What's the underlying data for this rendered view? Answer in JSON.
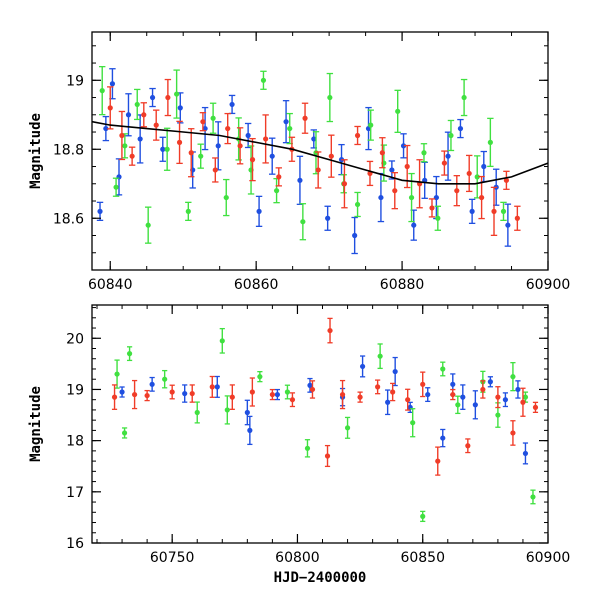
{
  "chart_data": [
    {
      "type": "scatter",
      "title": "",
      "xlabel": "",
      "ylabel": "Magnitude",
      "xlim": [
        60837.5,
        60900
      ],
      "ylim": [
        19.14,
        18.45
      ],
      "y_inverted": true,
      "x_ticks": [
        60840,
        60860,
        60880,
        60900
      ],
      "y_ticks": [
        18.6,
        18.8,
        19
      ],
      "x_tick_labels": [
        "60840",
        "60860",
        "60880",
        "60900"
      ],
      "y_tick_labels": [
        "18.6",
        "18.8",
        "19"
      ],
      "grid": false,
      "legend": "none",
      "series": [
        {
          "color": "#1f4fe0",
          "x": [
            60838.6,
            60839.4,
            60840.3,
            60841.2,
            60842.5,
            60844.1,
            60845.8,
            60847.2,
            60849.6,
            60851.3,
            60853.0,
            60854.8,
            60856.7,
            60858.9,
            60860.4,
            60862.2,
            60864.1,
            60866.0,
            60867.9,
            60869.8,
            60871.7,
            60873.5,
            60875.4,
            60877.1,
            60878.6,
            60880.2,
            60881.6,
            60883.1,
            60884.7,
            60886.3,
            60888.0,
            60889.6,
            60891.2,
            60892.9,
            60894.5
          ],
          "y": [
            18.62,
            18.86,
            18.99,
            18.72,
            18.9,
            18.83,
            18.95,
            18.8,
            18.92,
            18.74,
            18.86,
            18.81,
            18.93,
            18.84,
            18.62,
            18.78,
            18.88,
            18.71,
            18.83,
            18.6,
            18.77,
            18.55,
            18.86,
            18.66,
            18.74,
            18.81,
            18.58,
            18.71,
            18.66,
            18.78,
            18.86,
            18.62,
            18.75,
            18.69,
            18.58
          ]
        },
        {
          "color": "#40e040",
          "x": [
            60838.9,
            60840.8,
            60842.0,
            60843.7,
            60845.2,
            60847.8,
            60849.1,
            60850.7,
            60852.4,
            60854.1,
            60855.9,
            60857.6,
            60859.3,
            60861.0,
            60862.8,
            60864.6,
            60866.4,
            60868.2,
            60870.1,
            60872.0,
            60873.9,
            60875.7,
            60877.5,
            60879.4,
            60881.3,
            60883.0,
            60884.9,
            60886.7,
            60888.5,
            60890.3,
            60892.1,
            60893.9
          ],
          "y": [
            18.97,
            18.69,
            18.81,
            18.93,
            18.58,
            18.8,
            18.96,
            18.62,
            18.78,
            18.89,
            18.66,
            18.83,
            18.74,
            19.0,
            18.68,
            18.86,
            18.59,
            18.79,
            18.95,
            18.7,
            18.64,
            18.87,
            18.76,
            18.91,
            18.66,
            18.79,
            18.6,
            18.84,
            18.95,
            18.72,
            18.82,
            18.62
          ]
        },
        {
          "color": "#f03c28",
          "x": [
            60840.0,
            60841.6,
            60843.0,
            60844.6,
            60846.3,
            60847.9,
            60849.5,
            60851.1,
            60852.7,
            60854.4,
            60856.1,
            60857.8,
            60859.5,
            60861.3,
            60863.1,
            60864.9,
            60866.7,
            60868.5,
            60870.3,
            60872.1,
            60873.9,
            60875.6,
            60877.3,
            60879.0,
            60880.7,
            60882.4,
            60884.1,
            60885.8,
            60887.5,
            60889.2,
            60890.9,
            60892.6,
            60894.3,
            60895.8
          ],
          "y": [
            18.92,
            18.84,
            18.78,
            18.9,
            18.87,
            18.95,
            18.82,
            18.79,
            18.88,
            18.74,
            18.86,
            18.81,
            18.77,
            18.83,
            18.72,
            18.8,
            18.89,
            18.74,
            18.78,
            18.7,
            18.84,
            18.73,
            18.79,
            18.68,
            18.75,
            18.7,
            18.63,
            18.76,
            18.68,
            18.73,
            18.66,
            18.62,
            18.71,
            18.6
          ]
        }
      ],
      "fit_curve": {
        "color": "#000000",
        "x": [
          60837.5,
          60840,
          60845,
          60850,
          60855,
          60860,
          60865,
          60870,
          60875,
          60880,
          60885,
          60890,
          60895,
          60900
        ],
        "y": [
          18.88,
          18.87,
          18.86,
          18.85,
          18.84,
          18.82,
          18.8,
          18.77,
          18.74,
          18.71,
          18.7,
          18.7,
          18.72,
          18.76
        ]
      }
    },
    {
      "type": "scatter",
      "title": "",
      "xlabel": "HJD−2400000",
      "ylabel": "Magnitude",
      "xlim": [
        60718,
        60900
      ],
      "ylim": [
        20.65,
        16
      ],
      "y_inverted": true,
      "x_ticks": [
        60750,
        60800,
        60850,
        60900
      ],
      "y_ticks": [
        16,
        17,
        18,
        19,
        20
      ],
      "x_tick_labels": [
        "60750",
        "60800",
        "60850",
        "60900"
      ],
      "y_tick_labels": [
        "16",
        "17",
        "18",
        "19",
        "20"
      ],
      "grid": false,
      "legend": "none",
      "series": [
        {
          "color": "#1f4fe0",
          "x": [
            60730,
            60742,
            60755,
            60768,
            60780,
            60781,
            60792,
            60805,
            60818,
            60826,
            60836,
            60839,
            60845,
            60852,
            60858,
            60862,
            60866,
            60871,
            60877,
            60883,
            60888,
            60891
          ],
          "y": [
            18.95,
            19.1,
            18.92,
            19.05,
            18.55,
            18.2,
            18.9,
            19.08,
            18.85,
            19.45,
            18.75,
            19.35,
            18.65,
            18.9,
            18.05,
            19.1,
            18.85,
            18.7,
            19.15,
            18.8,
            19.0,
            17.75
          ]
        },
        {
          "color": "#40e040",
          "x": [
            60728,
            60731,
            60733,
            60747,
            60760,
            60770,
            60772,
            60785,
            60796,
            60804,
            60820,
            60833,
            60846,
            60850,
            60858,
            60864,
            60874,
            60880,
            60886,
            60891,
            60894
          ],
          "y": [
            19.3,
            18.15,
            19.7,
            19.2,
            18.55,
            19.95,
            18.6,
            19.25,
            18.95,
            17.85,
            18.25,
            19.65,
            18.35,
            16.52,
            19.4,
            18.7,
            19.15,
            18.5,
            19.25,
            18.85,
            16.9
          ]
        },
        {
          "color": "#f03c28",
          "x": [
            60727,
            60735,
            60740,
            60750,
            60758,
            60766,
            60774,
            60782,
            60790,
            60798,
            60806,
            60812,
            60813,
            60818,
            60825,
            60832,
            60838,
            60844,
            60850,
            60856,
            60862,
            60868,
            60874,
            60880,
            60886,
            60890,
            60895
          ],
          "y": [
            18.85,
            18.9,
            18.88,
            18.95,
            18.92,
            19.05,
            18.85,
            18.95,
            18.9,
            18.8,
            19.0,
            17.7,
            20.15,
            18.9,
            18.85,
            19.05,
            18.95,
            18.8,
            19.1,
            17.6,
            18.9,
            17.9,
            19.0,
            18.85,
            18.15,
            18.75,
            18.65
          ]
        }
      ]
    }
  ]
}
